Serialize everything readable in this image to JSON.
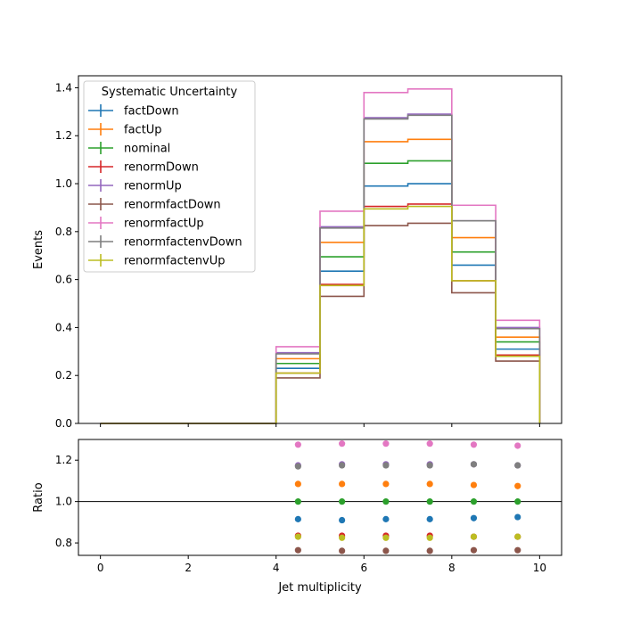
{
  "chart_data": [
    {
      "type": "line",
      "xlabel": "",
      "ylabel": "Events",
      "xlim": [
        -0.5,
        10.5
      ],
      "ylim": [
        0,
        1.45
      ],
      "xticks": [
        0,
        2,
        4,
        6,
        8,
        10
      ],
      "yticks": [
        0.0,
        0.2,
        0.4,
        0.6,
        0.8,
        1.0,
        1.2,
        1.4
      ],
      "bin_edges": [
        0,
        1,
        2,
        3,
        4,
        5,
        6,
        7,
        8,
        9,
        10
      ],
      "legend": {
        "title": "Systematic Uncertainty",
        "position": "top-left"
      },
      "series": [
        {
          "name": "factDown",
          "color": "#1f77b4",
          "values": [
            0,
            0,
            0,
            0,
            0.23,
            0.635,
            0.99,
            1.0,
            0.66,
            0.31
          ]
        },
        {
          "name": "factUp",
          "color": "#ff7f0e",
          "values": [
            0,
            0,
            0,
            0,
            0.27,
            0.755,
            1.175,
            1.185,
            0.775,
            0.36
          ]
        },
        {
          "name": "nominal",
          "color": "#2ca02c",
          "values": [
            0,
            0,
            0,
            0,
            0.25,
            0.695,
            1.085,
            1.095,
            0.715,
            0.34
          ]
        },
        {
          "name": "renormDown",
          "color": "#d62728",
          "values": [
            0,
            0,
            0,
            0,
            0.21,
            0.58,
            0.905,
            0.915,
            0.595,
            0.285
          ]
        },
        {
          "name": "renormUp",
          "color": "#9467bd",
          "values": [
            0,
            0,
            0,
            0,
            0.295,
            0.82,
            1.275,
            1.29,
            0.845,
            0.4
          ]
        },
        {
          "name": "renormfactDown",
          "color": "#8c564b",
          "values": [
            0,
            0,
            0,
            0,
            0.19,
            0.53,
            0.825,
            0.835,
            0.545,
            0.26
          ]
        },
        {
          "name": "renormfactUp",
          "color": "#e377c2",
          "values": [
            0,
            0,
            0,
            0,
            0.32,
            0.885,
            1.38,
            1.395,
            0.91,
            0.43
          ]
        },
        {
          "name": "renormfactenvDown",
          "color": "#7f7f7f",
          "values": [
            0,
            0,
            0,
            0,
            0.29,
            0.815,
            1.27,
            1.285,
            0.845,
            0.395
          ]
        },
        {
          "name": "renormfactenvUp",
          "color": "#bcbd22",
          "values": [
            0,
            0,
            0,
            0,
            0.21,
            0.575,
            0.895,
            0.905,
            0.595,
            0.28
          ]
        }
      ]
    },
    {
      "type": "scatter",
      "xlabel": "Jet multiplicity",
      "ylabel": "Ratio",
      "xlim": [
        -0.5,
        10.5
      ],
      "ylim": [
        0.74,
        1.3
      ],
      "xticks": [
        0,
        2,
        4,
        6,
        8,
        10
      ],
      "yticks": [
        0.8,
        1.0,
        1.2
      ],
      "reference_line": 1.0,
      "x": [
        4.5,
        5.5,
        6.5,
        7.5,
        8.5,
        9.5
      ],
      "series": [
        {
          "name": "factDown",
          "color": "#1f77b4",
          "values": [
            0.915,
            0.91,
            0.915,
            0.915,
            0.92,
            0.925
          ]
        },
        {
          "name": "factUp",
          "color": "#ff7f0e",
          "values": [
            1.085,
            1.085,
            1.085,
            1.085,
            1.08,
            1.075
          ]
        },
        {
          "name": "nominal",
          "color": "#2ca02c",
          "values": [
            1.0,
            1.0,
            1.0,
            1.0,
            1.0,
            1.0
          ]
        },
        {
          "name": "renormDown",
          "color": "#d62728",
          "values": [
            0.835,
            0.835,
            0.835,
            0.835,
            0.83,
            0.83
          ]
        },
        {
          "name": "renormUp",
          "color": "#9467bd",
          "values": [
            1.175,
            1.18,
            1.18,
            1.18,
            1.18,
            1.175
          ]
        },
        {
          "name": "renormfactDown",
          "color": "#8c564b",
          "values": [
            0.765,
            0.762,
            0.762,
            0.762,
            0.765,
            0.765
          ]
        },
        {
          "name": "renormfactUp",
          "color": "#e377c2",
          "values": [
            1.275,
            1.28,
            1.28,
            1.28,
            1.275,
            1.27
          ]
        },
        {
          "name": "renormfactenvDown",
          "color": "#7f7f7f",
          "values": [
            1.17,
            1.175,
            1.175,
            1.175,
            1.18,
            1.175
          ]
        },
        {
          "name": "renormfactenvUp",
          "color": "#bcbd22",
          "values": [
            0.83,
            0.825,
            0.825,
            0.825,
            0.83,
            0.83
          ]
        }
      ]
    }
  ]
}
